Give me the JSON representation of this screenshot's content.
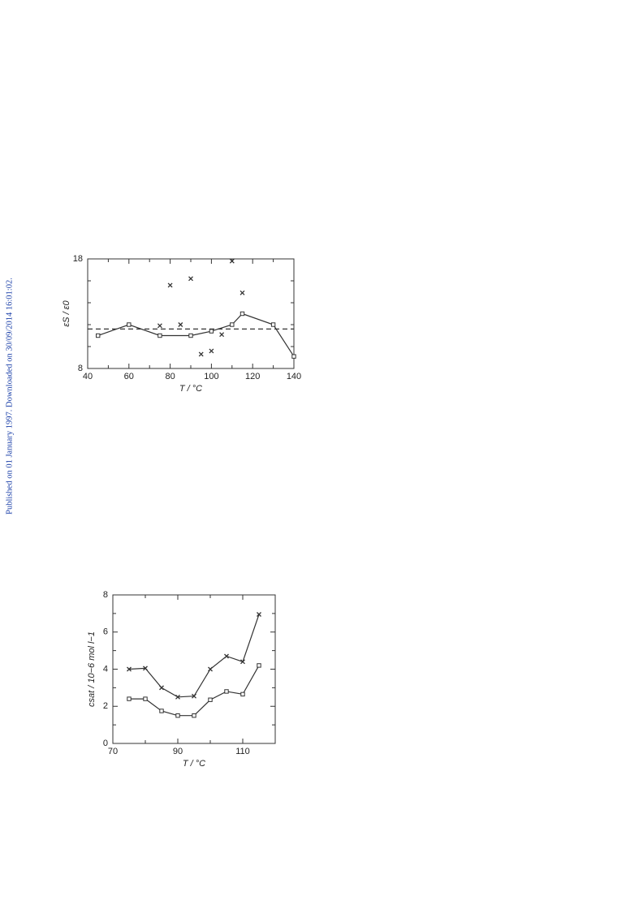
{
  "side_note": "Published on 01 January 1997. Downloaded on 30/09/2014 16:01:02.",
  "chart_data": [
    {
      "type": "line",
      "xlabel": "T / °C",
      "ylabel": "εS / ε0",
      "xlim": [
        40,
        140
      ],
      "ylim": [
        8,
        18
      ],
      "xticks": [
        40,
        60,
        80,
        100,
        120,
        140
      ],
      "xminorticks": [
        50,
        70,
        90,
        110,
        130
      ],
      "yticks": [
        8,
        18
      ],
      "yminorticks": [
        10,
        12,
        14,
        16
      ],
      "series": [
        {
          "color": "#333333",
          "marker": "square",
          "line": true,
          "dashed": false,
          "x": [
            45,
            60,
            75,
            90,
            100,
            110,
            115,
            130,
            140
          ],
          "values": [
            11,
            12,
            11,
            11,
            11.4,
            12,
            13,
            12,
            9.1
          ]
        },
        {
          "color": "#333333",
          "marker": "cross",
          "line": false,
          "dashed": false,
          "x": [
            75,
            80,
            85,
            90,
            95,
            100,
            105,
            110,
            115
          ],
          "values": [
            11.9,
            15.6,
            12,
            16.2,
            9.3,
            9.6,
            11.1,
            17.8,
            14.9
          ]
        },
        {
          "color": "#333333",
          "marker": "none",
          "line": true,
          "dashed": true,
          "x": [
            40,
            140
          ],
          "values": [
            11.6,
            11.6
          ]
        }
      ]
    },
    {
      "type": "line",
      "xlabel": "T / °C",
      "ylabel": "csat / 10−6 mol l−1",
      "xlim": [
        70,
        120
      ],
      "ylim": [
        0,
        8
      ],
      "xticks": [
        70,
        90,
        110
      ],
      "xminorticks": [
        80,
        100
      ],
      "yticks": [
        0,
        2,
        4,
        6,
        8
      ],
      "yminorticks": [
        1,
        3,
        5,
        7
      ],
      "series": [
        {
          "color": "#333333",
          "marker": "cross",
          "line": true,
          "dashed": false,
          "x": [
            75,
            80,
            85,
            90,
            95,
            100,
            105,
            110,
            115
          ],
          "values": [
            4,
            4.05,
            3,
            2.5,
            2.55,
            4,
            4.7,
            4.4,
            6.95
          ]
        },
        {
          "color": "#333333",
          "marker": "square",
          "line": true,
          "dashed": false,
          "x": [
            75,
            80,
            85,
            90,
            95,
            100,
            105,
            110,
            115
          ],
          "values": [
            2.4,
            2.4,
            1.75,
            1.5,
            1.5,
            2.35,
            2.8,
            2.65,
            4.2
          ]
        }
      ]
    }
  ]
}
